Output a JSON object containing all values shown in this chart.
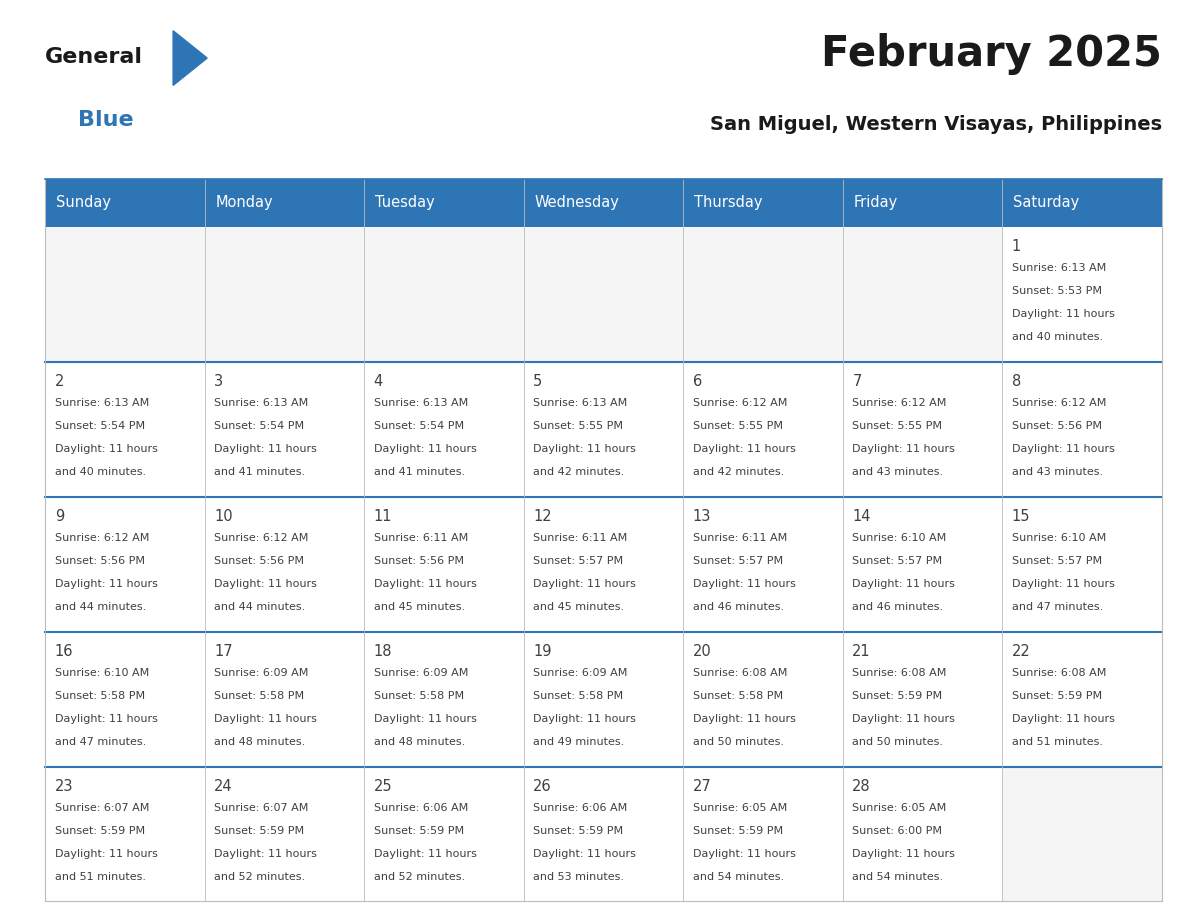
{
  "title": "February 2025",
  "subtitle": "San Miguel, Western Visayas, Philippines",
  "header_bg": "#2E75B6",
  "header_text_color": "#FFFFFF",
  "grid_line_color": "#2E75B6",
  "cell_text_color": "#404040",
  "days_of_week": [
    "Sunday",
    "Monday",
    "Tuesday",
    "Wednesday",
    "Thursday",
    "Friday",
    "Saturday"
  ],
  "calendar": [
    [
      null,
      null,
      null,
      null,
      null,
      null,
      {
        "day": "1",
        "sunrise": "6:13 AM",
        "sunset": "5:53 PM",
        "daylight_line1": "11 hours",
        "daylight_line2": "and 40 minutes."
      }
    ],
    [
      {
        "day": "2",
        "sunrise": "6:13 AM",
        "sunset": "5:54 PM",
        "daylight_line1": "11 hours",
        "daylight_line2": "and 40 minutes."
      },
      {
        "day": "3",
        "sunrise": "6:13 AM",
        "sunset": "5:54 PM",
        "daylight_line1": "11 hours",
        "daylight_line2": "and 41 minutes."
      },
      {
        "day": "4",
        "sunrise": "6:13 AM",
        "sunset": "5:54 PM",
        "daylight_line1": "11 hours",
        "daylight_line2": "and 41 minutes."
      },
      {
        "day": "5",
        "sunrise": "6:13 AM",
        "sunset": "5:55 PM",
        "daylight_line1": "11 hours",
        "daylight_line2": "and 42 minutes."
      },
      {
        "day": "6",
        "sunrise": "6:12 AM",
        "sunset": "5:55 PM",
        "daylight_line1": "11 hours",
        "daylight_line2": "and 42 minutes."
      },
      {
        "day": "7",
        "sunrise": "6:12 AM",
        "sunset": "5:55 PM",
        "daylight_line1": "11 hours",
        "daylight_line2": "and 43 minutes."
      },
      {
        "day": "8",
        "sunrise": "6:12 AM",
        "sunset": "5:56 PM",
        "daylight_line1": "11 hours",
        "daylight_line2": "and 43 minutes."
      }
    ],
    [
      {
        "day": "9",
        "sunrise": "6:12 AM",
        "sunset": "5:56 PM",
        "daylight_line1": "11 hours",
        "daylight_line2": "and 44 minutes."
      },
      {
        "day": "10",
        "sunrise": "6:12 AM",
        "sunset": "5:56 PM",
        "daylight_line1": "11 hours",
        "daylight_line2": "and 44 minutes."
      },
      {
        "day": "11",
        "sunrise": "6:11 AM",
        "sunset": "5:56 PM",
        "daylight_line1": "11 hours",
        "daylight_line2": "and 45 minutes."
      },
      {
        "day": "12",
        "sunrise": "6:11 AM",
        "sunset": "5:57 PM",
        "daylight_line1": "11 hours",
        "daylight_line2": "and 45 minutes."
      },
      {
        "day": "13",
        "sunrise": "6:11 AM",
        "sunset": "5:57 PM",
        "daylight_line1": "11 hours",
        "daylight_line2": "and 46 minutes."
      },
      {
        "day": "14",
        "sunrise": "6:10 AM",
        "sunset": "5:57 PM",
        "daylight_line1": "11 hours",
        "daylight_line2": "and 46 minutes."
      },
      {
        "day": "15",
        "sunrise": "6:10 AM",
        "sunset": "5:57 PM",
        "daylight_line1": "11 hours",
        "daylight_line2": "and 47 minutes."
      }
    ],
    [
      {
        "day": "16",
        "sunrise": "6:10 AM",
        "sunset": "5:58 PM",
        "daylight_line1": "11 hours",
        "daylight_line2": "and 47 minutes."
      },
      {
        "day": "17",
        "sunrise": "6:09 AM",
        "sunset": "5:58 PM",
        "daylight_line1": "11 hours",
        "daylight_line2": "and 48 minutes."
      },
      {
        "day": "18",
        "sunrise": "6:09 AM",
        "sunset": "5:58 PM",
        "daylight_line1": "11 hours",
        "daylight_line2": "and 48 minutes."
      },
      {
        "day": "19",
        "sunrise": "6:09 AM",
        "sunset": "5:58 PM",
        "daylight_line1": "11 hours",
        "daylight_line2": "and 49 minutes."
      },
      {
        "day": "20",
        "sunrise": "6:08 AM",
        "sunset": "5:58 PM",
        "daylight_line1": "11 hours",
        "daylight_line2": "and 50 minutes."
      },
      {
        "day": "21",
        "sunrise": "6:08 AM",
        "sunset": "5:59 PM",
        "daylight_line1": "11 hours",
        "daylight_line2": "and 50 minutes."
      },
      {
        "day": "22",
        "sunrise": "6:08 AM",
        "sunset": "5:59 PM",
        "daylight_line1": "11 hours",
        "daylight_line2": "and 51 minutes."
      }
    ],
    [
      {
        "day": "23",
        "sunrise": "6:07 AM",
        "sunset": "5:59 PM",
        "daylight_line1": "11 hours",
        "daylight_line2": "and 51 minutes."
      },
      {
        "day": "24",
        "sunrise": "6:07 AM",
        "sunset": "5:59 PM",
        "daylight_line1": "11 hours",
        "daylight_line2": "and 52 minutes."
      },
      {
        "day": "25",
        "sunrise": "6:06 AM",
        "sunset": "5:59 PM",
        "daylight_line1": "11 hours",
        "daylight_line2": "and 52 minutes."
      },
      {
        "day": "26",
        "sunrise": "6:06 AM",
        "sunset": "5:59 PM",
        "daylight_line1": "11 hours",
        "daylight_line2": "and 53 minutes."
      },
      {
        "day": "27",
        "sunrise": "6:05 AM",
        "sunset": "5:59 PM",
        "daylight_line1": "11 hours",
        "daylight_line2": "and 54 minutes."
      },
      {
        "day": "28",
        "sunrise": "6:05 AM",
        "sunset": "6:00 PM",
        "daylight_line1": "11 hours",
        "daylight_line2": "and 54 minutes."
      },
      null
    ]
  ],
  "logo_general_color": "#1a1a1a",
  "logo_blue_color": "#2E75B6",
  "logo_triangle_color": "#2E75B6"
}
